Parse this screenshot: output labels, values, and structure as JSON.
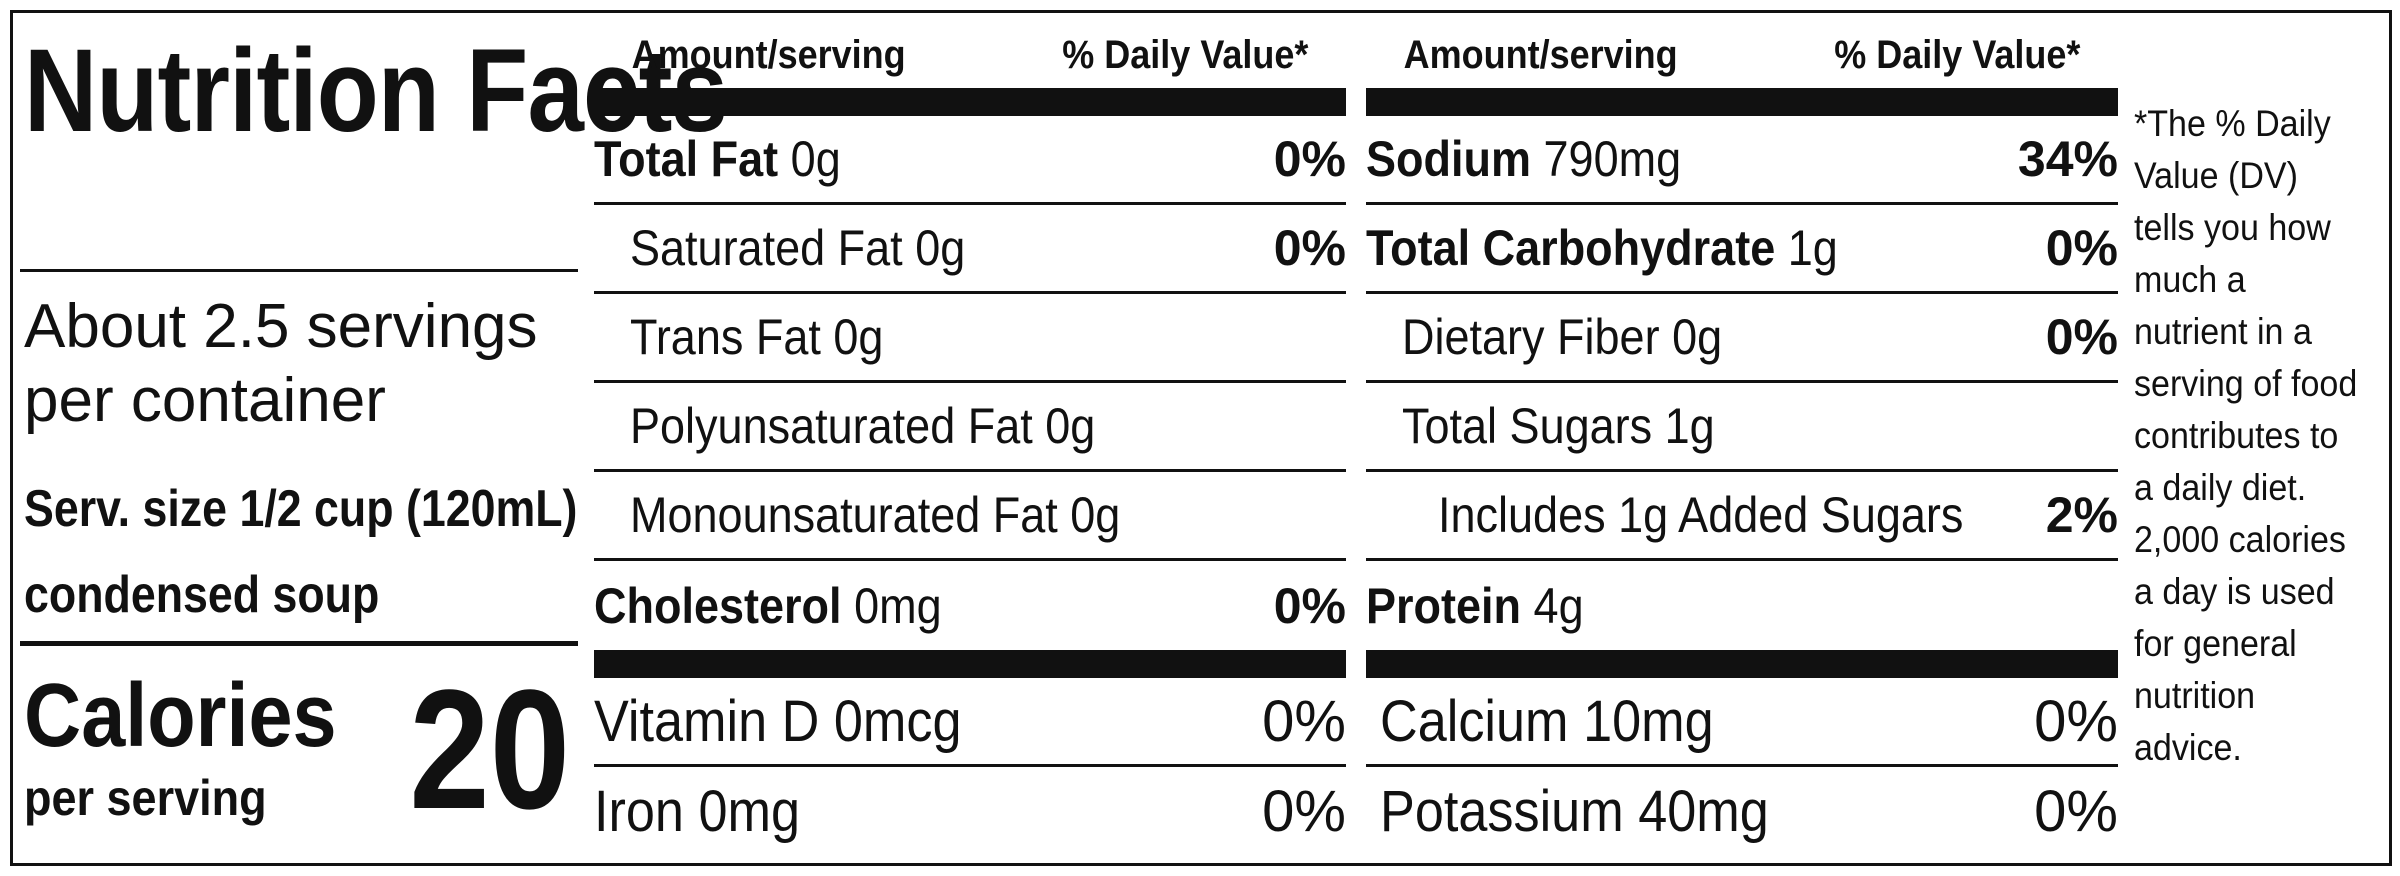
{
  "title": "Nutrition Facts",
  "servings_lines": [
    "About 2.5 servings",
    "per container"
  ],
  "serving_size_lines": [
    "Serv. size 1/2 cup (120mL)",
    "condensed soup"
  ],
  "calories": {
    "label": "Calories",
    "sublabel": "per serving",
    "value": "20"
  },
  "columns": [
    {
      "header": {
        "amount": "Amount/serving",
        "dv": "% Daily Value*"
      },
      "rows": [
        {
          "name": "Total Fat",
          "amount": "0g",
          "dv": "0%"
        },
        {
          "name": "Saturated Fat",
          "amount": "0g",
          "dv": "0%"
        },
        {
          "name": "Trans Fat",
          "amount": "0g"
        },
        {
          "name": "Polyunsaturated Fat",
          "amount": "0g"
        },
        {
          "name": "Monounsaturated Fat",
          "amount": "0g"
        },
        {
          "name": "Cholesterol",
          "amount": "0mg",
          "dv": "0%"
        }
      ],
      "vitamins": [
        {
          "name": "Vitamin D",
          "amount": "0mcg",
          "dv": "0%"
        },
        {
          "name": "Iron",
          "amount": "0mg",
          "dv": "0%"
        }
      ]
    },
    {
      "header": {
        "amount": "Amount/serving",
        "dv": "% Daily Value*"
      },
      "rows": [
        {
          "name": "Sodium",
          "amount": "790mg",
          "dv": "34%"
        },
        {
          "name": "Total Carbohydrate",
          "amount": "1g",
          "dv": "0%"
        },
        {
          "name": "Dietary Fiber",
          "amount": "0g",
          "dv": "0%"
        },
        {
          "name": "Total Sugars",
          "amount": "1g"
        },
        {
          "name": "Includes 1g Added Sugars",
          "dv": "2%"
        },
        {
          "name": "Protein",
          "amount": "4g"
        }
      ],
      "vitamins": [
        {
          "name": "Calcium",
          "amount": "10mg",
          "dv": "0%"
        },
        {
          "name": "Potassium",
          "amount": "40mg",
          "dv": "0%"
        }
      ]
    }
  ],
  "footnote": "*The % Daily Value (DV) tells you how much a nutrient in a serving of food contributes to a daily diet. 2,000 calories a day is used for general nutrition advice."
}
